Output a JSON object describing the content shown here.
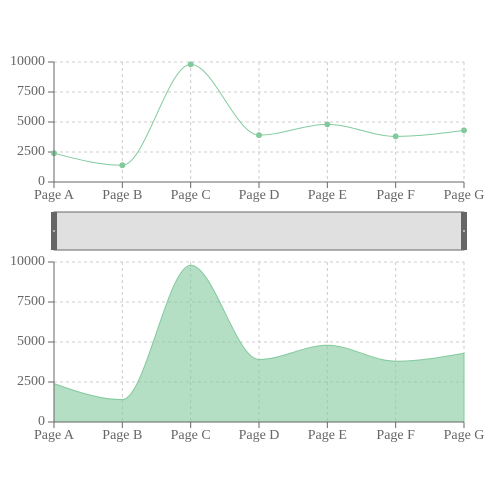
{
  "chart_data": [
    {
      "type": "line",
      "categories": [
        "Page A",
        "Page B",
        "Page C",
        "Page D",
        "Page E",
        "Page F",
        "Page G"
      ],
      "values": [
        2400,
        1398,
        9800,
        3908,
        4800,
        3800,
        4300
      ],
      "color": "#82ca9d",
      "ylim": [
        0,
        10000
      ],
      "yticks": [
        0,
        2500,
        5000,
        7500,
        10000
      ],
      "grid": true
    },
    {
      "type": "area",
      "categories": [
        "Page A",
        "Page B",
        "Page C",
        "Page D",
        "Page E",
        "Page F",
        "Page G"
      ],
      "values": [
        2400,
        1398,
        9800,
        3908,
        4800,
        3800,
        4300
      ],
      "color": "#82ca9d",
      "ylim": [
        0,
        10000
      ],
      "yticks": [
        0,
        2500,
        5000,
        7500,
        10000
      ],
      "grid": true
    }
  ]
}
